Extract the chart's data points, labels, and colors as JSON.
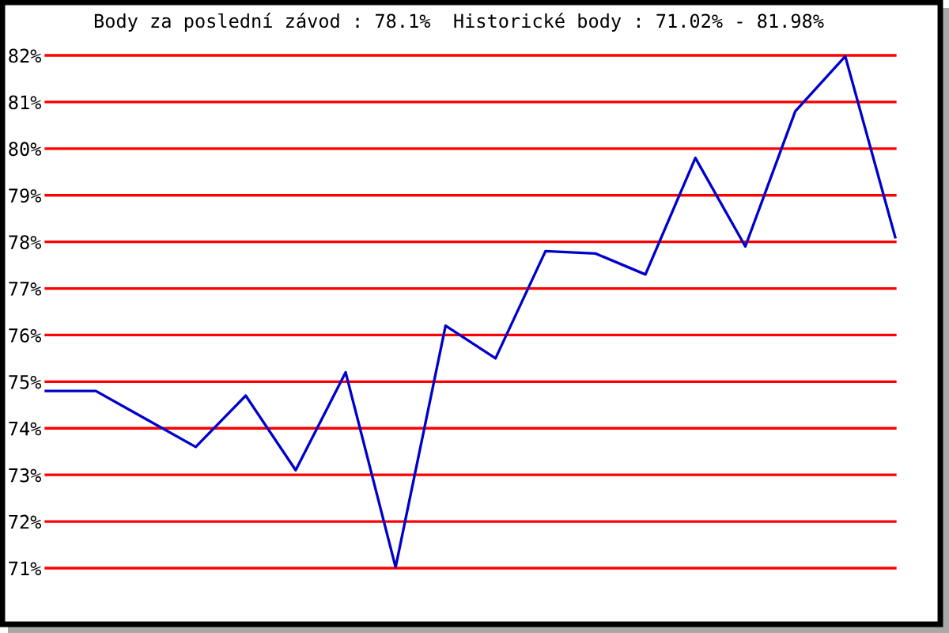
{
  "chart_data": {
    "type": "line",
    "title": "Body za poslední závod : 78.1%  Historické body : 71.02% - 81.98%",
    "categories": [
      null,
      null,
      null,
      null,
      null,
      null,
      null,
      null,
      null,
      null,
      null,
      null,
      null,
      null,
      null,
      null,
      null,
      null
    ],
    "series": [
      {
        "color": "#0000cc",
        "values": [
          74.8,
          74.8,
          74.2,
          73.6,
          74.7,
          73.1,
          75.2,
          71.02,
          76.2,
          75.5,
          77.8,
          77.75,
          77.3,
          79.8,
          77.9,
          80.8,
          81.98,
          78.1
        ]
      }
    ],
    "ylim": [
      71,
      82
    ],
    "yticks": [
      {
        "value": 71,
        "label": "71%"
      },
      {
        "value": 72,
        "label": "72%"
      },
      {
        "value": 73,
        "label": "73%"
      },
      {
        "value": 74,
        "label": "74%"
      },
      {
        "value": 75,
        "label": "75%"
      },
      {
        "value": 76,
        "label": "76%"
      },
      {
        "value": 77,
        "label": "77%"
      },
      {
        "value": 78,
        "label": "78%"
      },
      {
        "value": 79,
        "label": "79%"
      },
      {
        "value": 80,
        "label": "80%"
      },
      {
        "value": 81,
        "label": "81%"
      },
      {
        "value": 82,
        "label": "82%"
      }
    ],
    "grid": "y",
    "legend": false,
    "marker": "none",
    "line_style": "solid"
  }
}
